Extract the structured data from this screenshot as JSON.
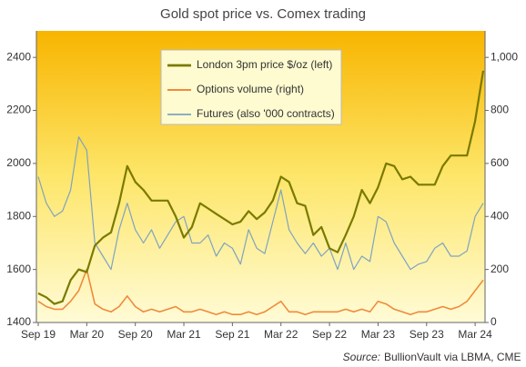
{
  "chart_data": {
    "type": "line",
    "title": "Gold spot price vs. Comex trading",
    "source_label": "Source:",
    "source": "BullionVault via LBMA, CME",
    "x": [
      "2019-09",
      "2019-10",
      "2019-11",
      "2019-12",
      "2020-01",
      "2020-02",
      "2020-03",
      "2020-04",
      "2020-05",
      "2020-06",
      "2020-07",
      "2020-08",
      "2020-09",
      "2020-10",
      "2020-11",
      "2020-12",
      "2021-01",
      "2021-02",
      "2021-03",
      "2021-04",
      "2021-05",
      "2021-06",
      "2021-07",
      "2021-08",
      "2021-09",
      "2021-10",
      "2021-11",
      "2021-12",
      "2022-01",
      "2022-02",
      "2022-03",
      "2022-04",
      "2022-05",
      "2022-06",
      "2022-07",
      "2022-08",
      "2022-09",
      "2022-10",
      "2022-11",
      "2022-12",
      "2023-01",
      "2023-02",
      "2023-03",
      "2023-04",
      "2023-05",
      "2023-06",
      "2023-07",
      "2023-08",
      "2023-09",
      "2023-10",
      "2023-11",
      "2023-12",
      "2024-01",
      "2024-02",
      "2024-03",
      "2024-04"
    ],
    "xlim": [
      "2019-09",
      "2024-04"
    ],
    "xticks": [
      {
        "value": "2019-09",
        "label": "Sep 19"
      },
      {
        "value": "2020-03",
        "label": "Mar 20"
      },
      {
        "value": "2020-09",
        "label": "Sep 20"
      },
      {
        "value": "2021-03",
        "label": "Mar 21"
      },
      {
        "value": "2021-09",
        "label": "Sep 21"
      },
      {
        "value": "2022-03",
        "label": "Mar 22"
      },
      {
        "value": "2022-09",
        "label": "Sep 22"
      },
      {
        "value": "2023-03",
        "label": "Mar 23"
      },
      {
        "value": "2023-09",
        "label": "Sep 23"
      },
      {
        "value": "2024-03",
        "label": "Mar 24"
      }
    ],
    "ylim": [
      1400,
      2500
    ],
    "yticks": [
      1400,
      1600,
      1800,
      2000,
      2200,
      2400
    ],
    "y2lim": [
      0,
      1100
    ],
    "y2ticks": [
      0,
      200,
      400,
      600,
      800,
      {
        "value": 1000,
        "label": "1,000"
      }
    ],
    "series": [
      {
        "name": "London 3pm price $/oz (left)",
        "color": "#7a7a00",
        "width": 2.2,
        "values": [
          1510,
          1495,
          1470,
          1480,
          1560,
          1600,
          1590,
          1690,
          1720,
          1740,
          1850,
          1990,
          1930,
          1900,
          1860,
          1860,
          1860,
          1800,
          1720,
          1760,
          1850,
          1830,
          1810,
          1790,
          1770,
          1780,
          1820,
          1790,
          1815,
          1860,
          1950,
          1930,
          1850,
          1840,
          1730,
          1760,
          1680,
          1665,
          1730,
          1800,
          1900,
          1850,
          1910,
          2000,
          1990,
          1940,
          1950,
          1920,
          1920,
          1920,
          1990,
          2030,
          2030,
          2030,
          2160,
          2350
        ]
      },
      {
        "name": "Options volume (right)",
        "color": "#f08a3c",
        "width": 1.6,
        "axis": "y2",
        "values": [
          80,
          60,
          50,
          50,
          80,
          120,
          200,
          70,
          50,
          40,
          60,
          100,
          60,
          40,
          50,
          40,
          50,
          60,
          40,
          40,
          50,
          40,
          30,
          40,
          30,
          30,
          40,
          30,
          40,
          60,
          80,
          40,
          40,
          30,
          40,
          40,
          40,
          40,
          50,
          40,
          50,
          40,
          80,
          70,
          50,
          40,
          30,
          40,
          40,
          50,
          60,
          50,
          60,
          80,
          120,
          160
        ]
      },
      {
        "name": "Futures (also '000 contracts)",
        "color": "#7fa3c0",
        "width": 1.2,
        "axis": "y2",
        "values": [
          550,
          450,
          400,
          420,
          500,
          700,
          650,
          300,
          250,
          200,
          350,
          450,
          350,
          300,
          350,
          280,
          330,
          380,
          400,
          300,
          300,
          330,
          250,
          300,
          280,
          220,
          350,
          280,
          260,
          380,
          500,
          350,
          300,
          260,
          300,
          250,
          280,
          200,
          300,
          200,
          250,
          230,
          400,
          380,
          300,
          250,
          200,
          220,
          230,
          280,
          300,
          250,
          250,
          270,
          400,
          450
        ]
      }
    ]
  }
}
